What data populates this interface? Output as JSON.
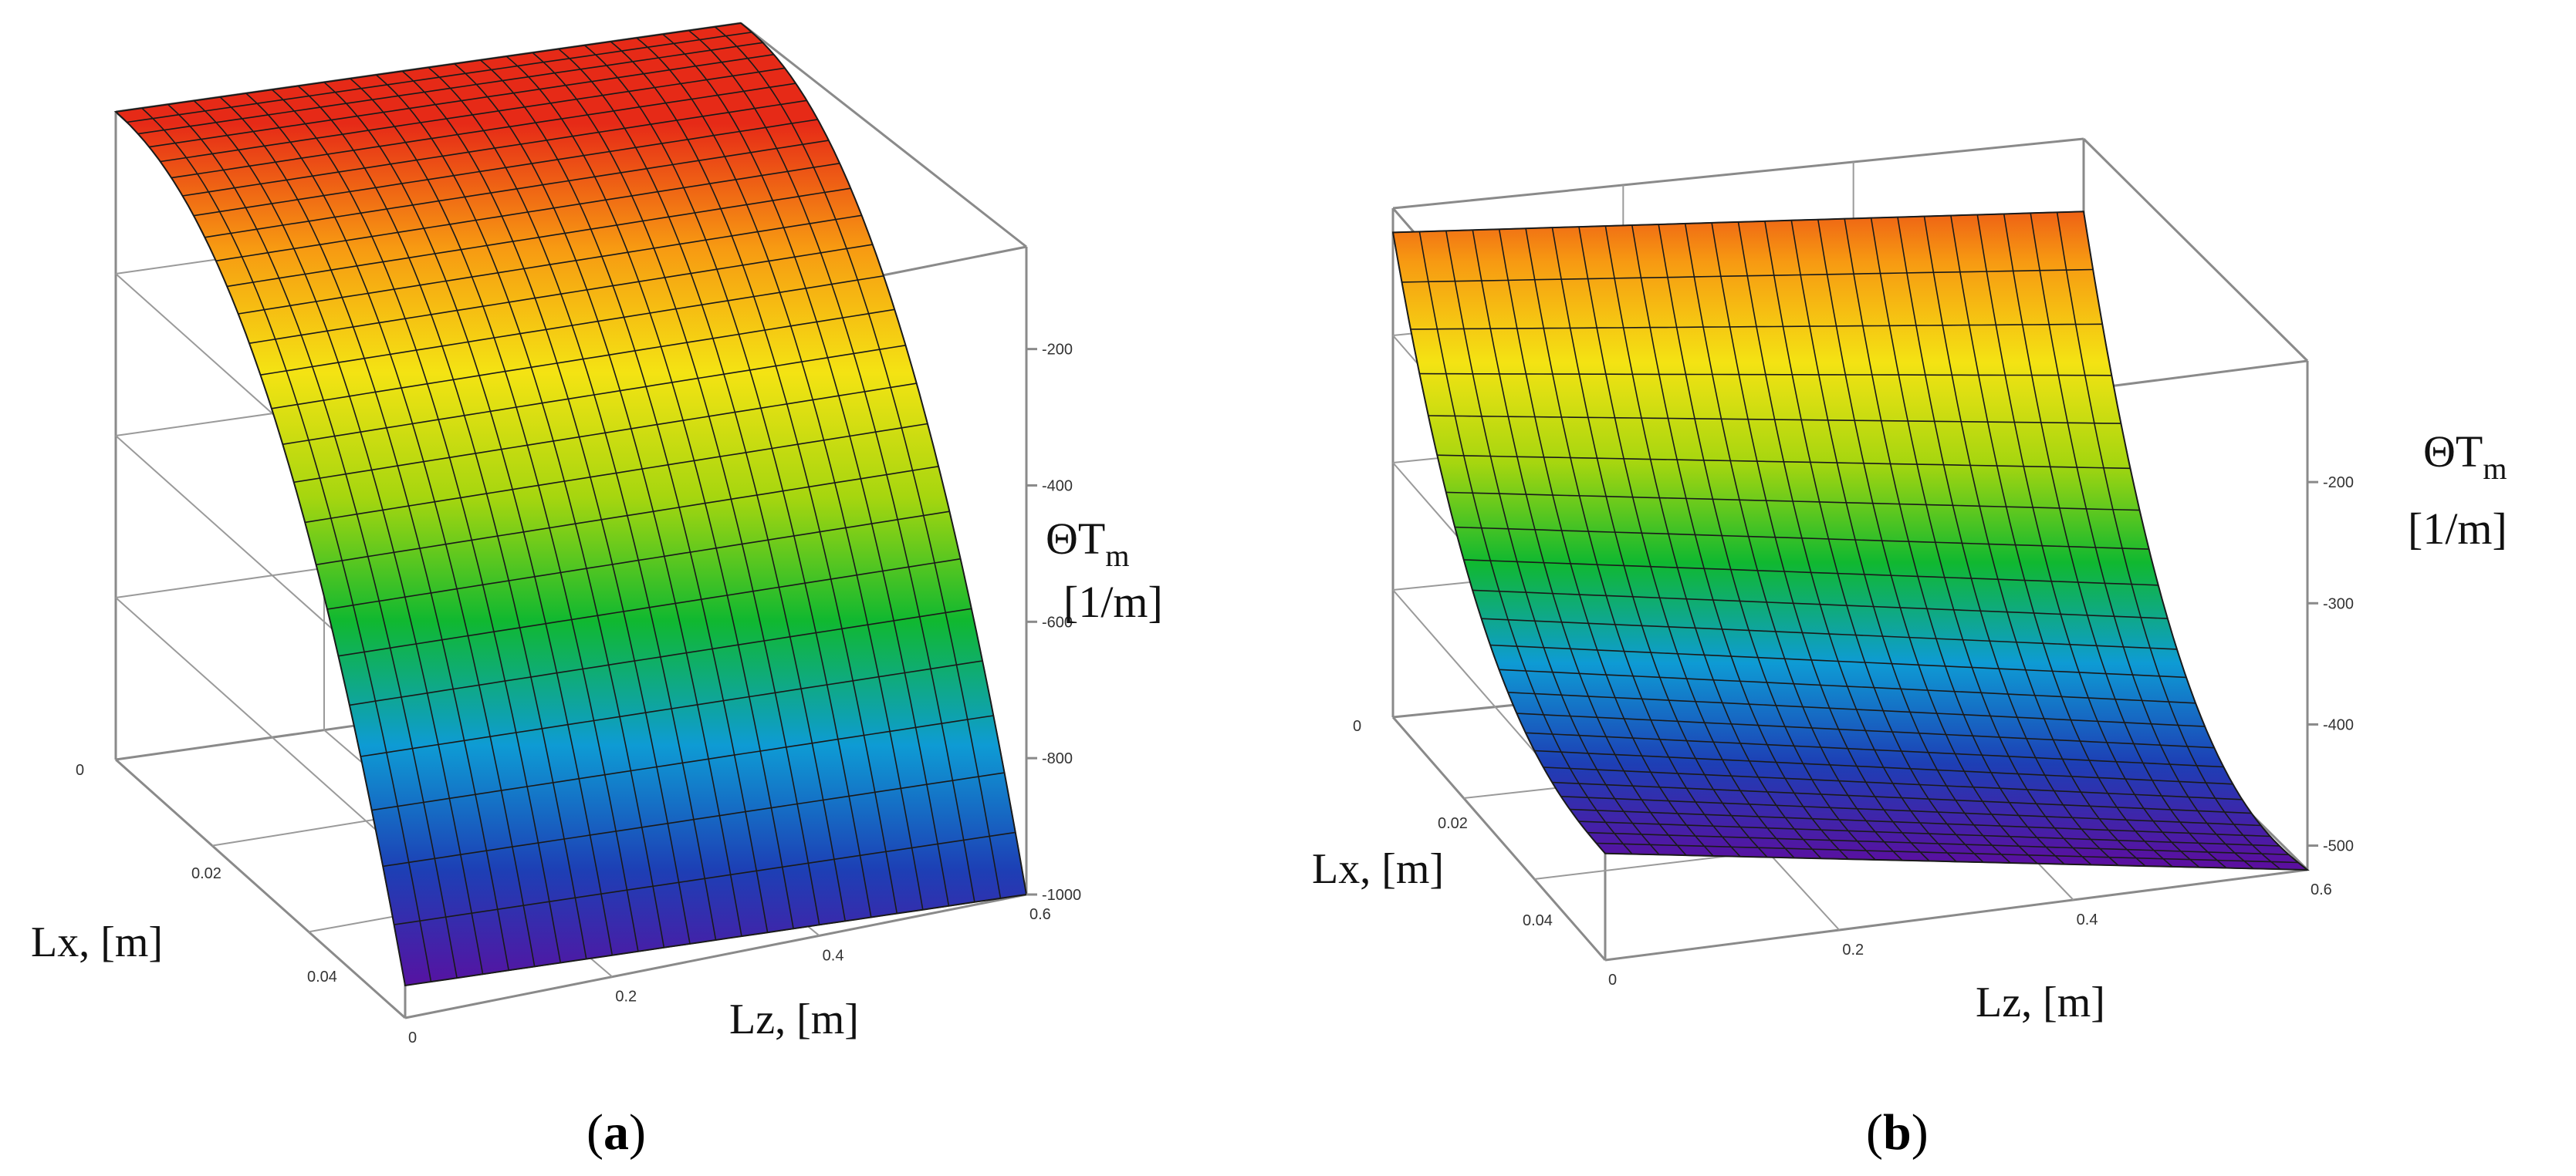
{
  "chart_data": [
    {
      "id": "a",
      "type": "surface3d",
      "caption": "a",
      "x": {
        "label": "Lx, [m]",
        "range": [
          0,
          0.05
        ],
        "ticks": [
          0,
          0.02,
          0.04
        ]
      },
      "z": {
        "label": "Lz, [m]",
        "range": [
          0,
          0.6
        ],
        "ticks": [
          0,
          0.2,
          0.4,
          0.6
        ]
      },
      "value": {
        "label_main": "ΘT",
        "label_sub": "m",
        "label_unit": "[1/m]",
        "range": [
          -1000,
          -200
        ],
        "ticks": [
          -200,
          -400,
          -600,
          -800,
          -1000
        ]
      },
      "surface": {
        "shape": "decreasing-with-Lx",
        "max": -50,
        "min": -1000,
        "note": "values approximately constant along Lz"
      },
      "colormap": [
        "#5b0fa0",
        "#1d3fb5",
        "#0e9bd4",
        "#10b830",
        "#a6d60f",
        "#f4e313",
        "#f79a12",
        "#e62a17"
      ]
    },
    {
      "id": "b",
      "type": "surface3d",
      "caption": "b",
      "x": {
        "label": "Lx, [m]",
        "range": [
          0,
          0.05
        ],
        "ticks": [
          0,
          0.02,
          0.04
        ]
      },
      "z": {
        "label": "Lz, [m]",
        "range": [
          0,
          0.6
        ],
        "ticks": [
          0,
          0.2,
          0.4,
          0.6
        ]
      },
      "value": {
        "label_main": "ΘT",
        "label_sub": "m",
        "label_unit": "[1/m]",
        "range": [
          -500,
          -200
        ],
        "ticks": [
          -200,
          -300,
          -400,
          -500
        ]
      },
      "surface": {
        "shape": "decreasing-with-Lx-and-Lz",
        "max": -120,
        "min": -520
      },
      "colormap": [
        "#5b0fa0",
        "#1d3fb5",
        "#0e9bd4",
        "#10b830",
        "#a6d60f",
        "#f4e313",
        "#f79a12",
        "#e62a17"
      ]
    }
  ]
}
